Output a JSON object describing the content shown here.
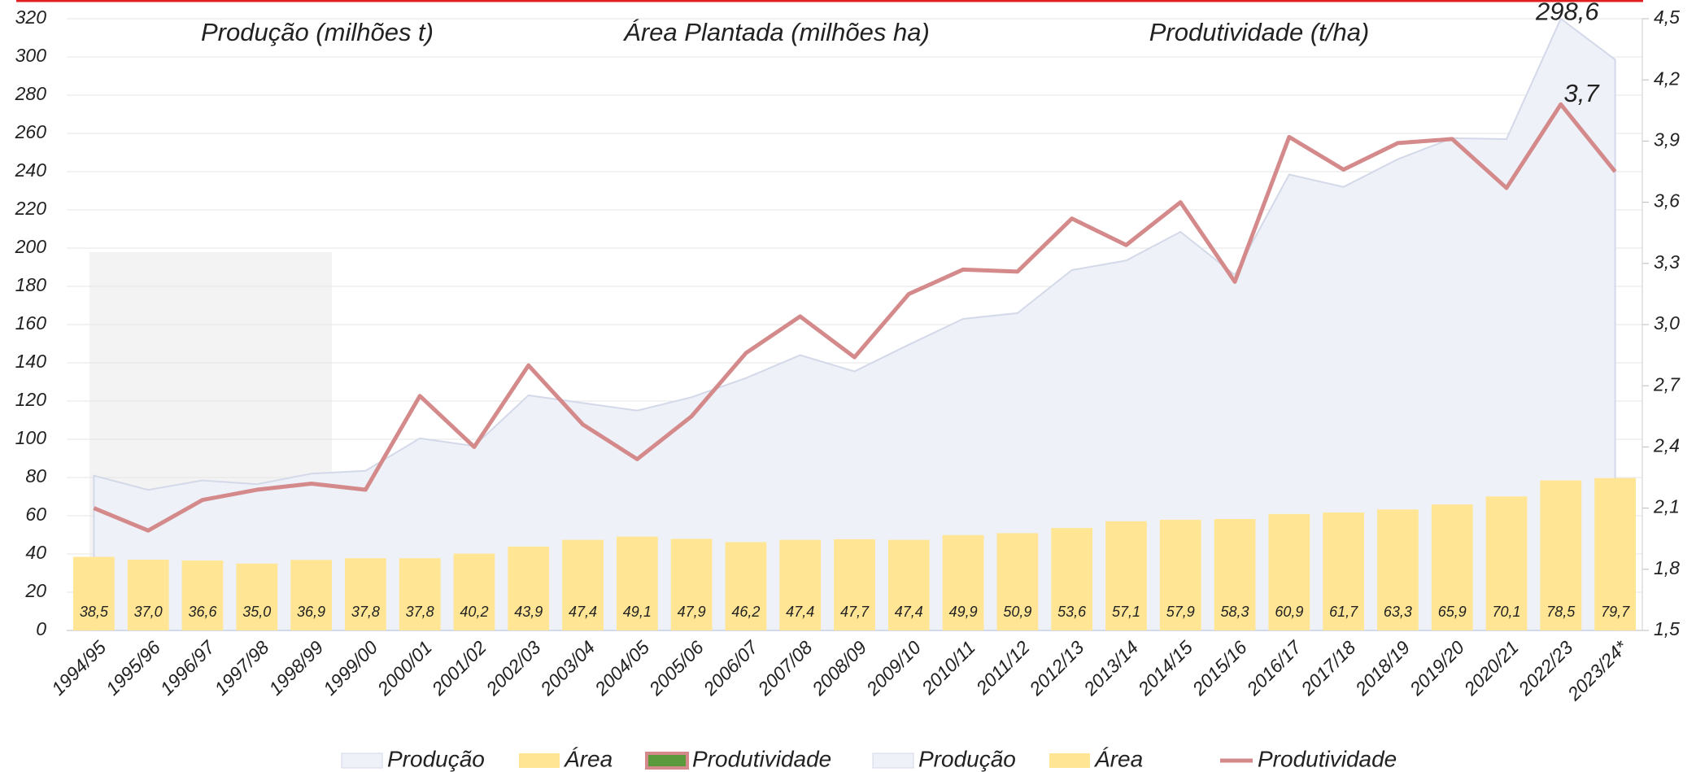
{
  "chart_data": {
    "type": "combo",
    "annotations": [
      "Produção (milhões t)",
      "Área Plantada (milhões ha)",
      "Produtividade (t/ha)"
    ],
    "categories": [
      "1994/95",
      "1995/96",
      "1996/97",
      "1997/98",
      "1998/99",
      "1999/00",
      "2000/01",
      "2001/02",
      "2002/03",
      "2003/04",
      "2004/05",
      "2005/06",
      "2006/07",
      "2007/08",
      "2008/09",
      "2009/10",
      "2010/11",
      "2011/12",
      "2012/13",
      "2013/14",
      "2014/15",
      "2015/16",
      "2016/17",
      "2017/18",
      "2018/19",
      "2019/20",
      "2020/21",
      "2022/23",
      "2023/24*"
    ],
    "series": [
      {
        "name": "Produção",
        "kind": "area",
        "color": "#eef1f8",
        "stroke": "#d3d9e8",
        "values": [
          81,
          73.5,
          78.5,
          76.5,
          82,
          83.5,
          100.5,
          96.5,
          123,
          119,
          115,
          122,
          132,
          144,
          135.5,
          149.5,
          163,
          166,
          188.5,
          193.5,
          208.5,
          186,
          238.5,
          232,
          246.5,
          257.5,
          257,
          320,
          298.6
        ],
        "value_labels": [
          null,
          null,
          null,
          null,
          null,
          null,
          null,
          null,
          null,
          null,
          null,
          null,
          null,
          null,
          null,
          null,
          null,
          null,
          null,
          null,
          null,
          null,
          null,
          null,
          null,
          null,
          null,
          null,
          "298,6"
        ]
      },
      {
        "name": "Área",
        "kind": "bar",
        "color": "#ffe594",
        "values": [
          38.5,
          37.0,
          36.6,
          35.0,
          36.9,
          37.8,
          37.8,
          40.2,
          43.9,
          47.4,
          49.1,
          47.9,
          46.2,
          47.4,
          47.7,
          47.4,
          49.9,
          50.9,
          53.6,
          57.1,
          57.9,
          58.3,
          60.9,
          61.7,
          63.3,
          65.9,
          70.1,
          78.5,
          79.7
        ],
        "value_labels": [
          "38,5",
          "37,0",
          "36,6",
          "35,0",
          "36,9",
          "37,8",
          "37,8",
          "40,2",
          "43,9",
          "47,4",
          "49,1",
          "47,9",
          "46,2",
          "47,4",
          "47,7",
          "47,4",
          "49,9",
          "50,9",
          "53,6",
          "57,1",
          "57,9",
          "58,3",
          "60,9",
          "61,7",
          "63,3",
          "65,9",
          "70,1",
          "78,5",
          "79,7"
        ]
      },
      {
        "name": "Produtividade",
        "kind": "line",
        "axis": "y2",
        "color": "#d48a8a",
        "legend_box_color": "#5b9a3c",
        "values": [
          2.1,
          1.99,
          2.14,
          2.19,
          2.22,
          2.19,
          2.65,
          2.4,
          2.8,
          2.51,
          2.34,
          2.55,
          2.86,
          3.04,
          2.84,
          3.15,
          3.27,
          3.26,
          3.52,
          3.39,
          3.6,
          3.21,
          3.92,
          3.76,
          3.89,
          3.91,
          3.67,
          4.08,
          3.75
        ],
        "value_labels": [
          null,
          null,
          null,
          null,
          null,
          null,
          null,
          null,
          null,
          null,
          null,
          null,
          null,
          null,
          null,
          null,
          null,
          null,
          null,
          null,
          null,
          null,
          null,
          null,
          null,
          null,
          null,
          null,
          "3,7"
        ]
      }
    ],
    "ylim": [
      0,
      320
    ],
    "yticks": [
      0,
      20,
      40,
      60,
      80,
      100,
      120,
      140,
      160,
      180,
      200,
      220,
      240,
      260,
      280,
      300,
      320
    ],
    "y2lim": [
      1.5,
      4.5
    ],
    "y2ticks": [
      {
        "value": 1.5,
        "label": "1,5"
      },
      {
        "value": 1.8,
        "label": "1,8"
      },
      {
        "value": 2.1,
        "label": "2,1"
      },
      {
        "value": 2.4,
        "label": "2,4"
      },
      {
        "value": 2.7,
        "label": "2,7"
      },
      {
        "value": 3.0,
        "label": "3,0"
      },
      {
        "value": 3.3,
        "label": "3,3"
      },
      {
        "value": 3.6,
        "label": "3,6"
      },
      {
        "value": 3.9,
        "label": "3,9"
      },
      {
        "value": 4.2,
        "label": "4,2"
      },
      {
        "value": 4.5,
        "label": "4,5"
      }
    ],
    "grid": true
  }
}
